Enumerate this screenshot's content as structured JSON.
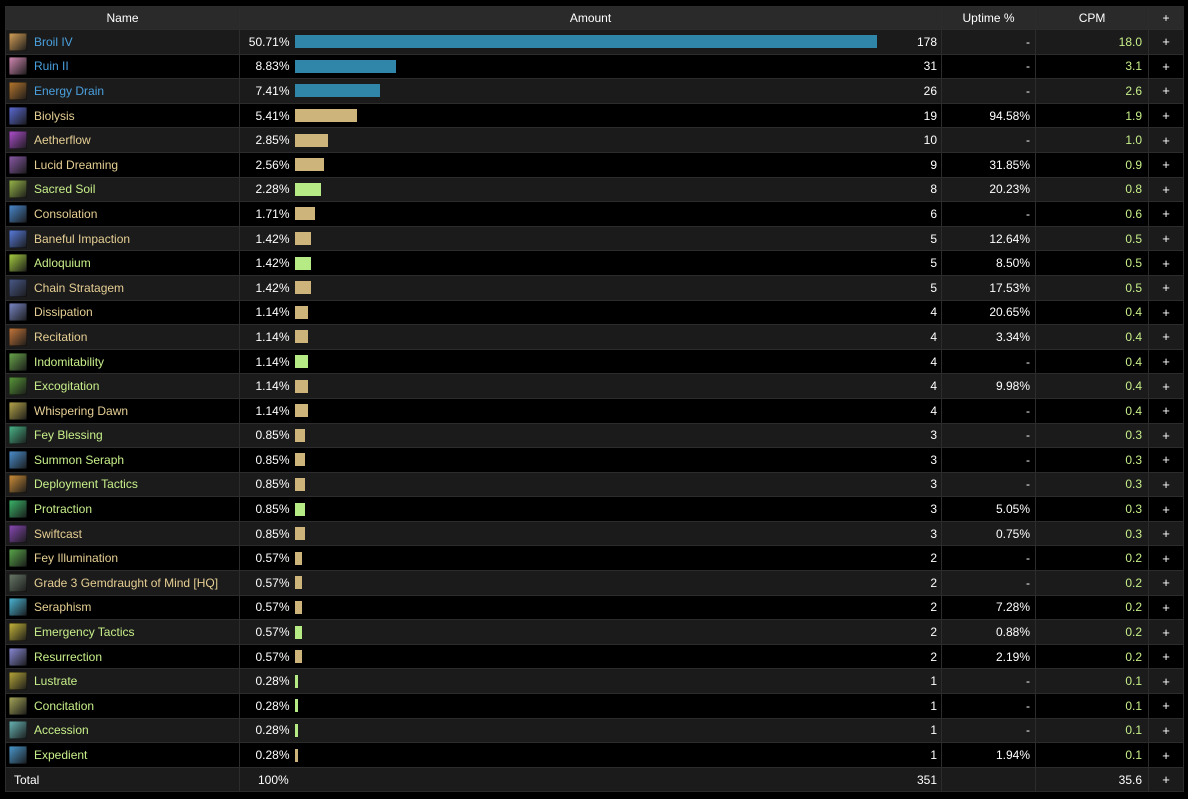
{
  "header": {
    "name": "Name",
    "amount": "Amount",
    "uptime": "Uptime %",
    "cpm": "CPM",
    "plus": "+"
  },
  "colors": {
    "blue": "#2f86a8",
    "tan": "#cdb47a",
    "green": "#b6ea84"
  },
  "rows": [
    {
      "name": "Broil IV",
      "label_color": "blue",
      "bar": "blue",
      "icon": "broil-iv-icon",
      "icon_color": "#d8a25a",
      "pct": "50.71%",
      "frac": 0.5071,
      "count": "178",
      "uptime": "-",
      "cpm": "18.0"
    },
    {
      "name": "Ruin II",
      "label_color": "blue",
      "bar": "blue",
      "icon": "ruin-ii-icon",
      "icon_color": "#d58ab5",
      "pct": "8.83%",
      "frac": 0.0883,
      "count": "31",
      "uptime": "-",
      "cpm": "3.1"
    },
    {
      "name": "Energy Drain",
      "label_color": "blue",
      "bar": "blue",
      "icon": "energy-drain-icon",
      "icon_color": "#b8782e",
      "pct": "7.41%",
      "frac": 0.0741,
      "count": "26",
      "uptime": "-",
      "cpm": "2.6"
    },
    {
      "name": "Biolysis",
      "label_color": "tan",
      "bar": "tan",
      "icon": "biolysis-icon",
      "icon_color": "#5b6bd6",
      "pct": "5.41%",
      "frac": 0.0541,
      "count": "19",
      "uptime": "94.58%",
      "cpm": "1.9"
    },
    {
      "name": "Aetherflow",
      "label_color": "tan",
      "bar": "tan",
      "icon": "aetherflow-icon",
      "icon_color": "#b14fd1",
      "pct": "2.85%",
      "frac": 0.0285,
      "count": "10",
      "uptime": "-",
      "cpm": "1.0"
    },
    {
      "name": "Lucid Dreaming",
      "label_color": "tan",
      "bar": "tan",
      "icon": "lucid-dreaming-icon",
      "icon_color": "#8a5aa8",
      "pct": "2.56%",
      "frac": 0.0256,
      "count": "9",
      "uptime": "31.85%",
      "cpm": "0.9"
    },
    {
      "name": "Sacred Soil",
      "label_color": "green",
      "bar": "green",
      "icon": "sacred-soil-icon",
      "icon_color": "#9ab84a",
      "pct": "2.28%",
      "frac": 0.0228,
      "count": "8",
      "uptime": "20.23%",
      "cpm": "0.8"
    },
    {
      "name": "Consolation",
      "label_color": "tan",
      "bar": "tan",
      "icon": "consolation-icon",
      "icon_color": "#4a8ad0",
      "pct": "1.71%",
      "frac": 0.0171,
      "count": "6",
      "uptime": "-",
      "cpm": "0.6"
    },
    {
      "name": "Baneful Impaction",
      "label_color": "tan",
      "bar": "tan",
      "icon": "baneful-impaction-icon",
      "icon_color": "#5a7ee0",
      "pct": "1.42%",
      "frac": 0.0142,
      "count": "5",
      "uptime": "12.64%",
      "cpm": "0.5"
    },
    {
      "name": "Adloquium",
      "label_color": "green",
      "bar": "green",
      "icon": "adloquium-icon",
      "icon_color": "#a8d040",
      "pct": "1.42%",
      "frac": 0.0142,
      "count": "5",
      "uptime": "8.50%",
      "cpm": "0.5"
    },
    {
      "name": "Chain Stratagem",
      "label_color": "tan",
      "bar": "tan",
      "icon": "chain-stratagem-icon",
      "icon_color": "#4a5a8a",
      "pct": "1.42%",
      "frac": 0.0142,
      "count": "5",
      "uptime": "17.53%",
      "cpm": "0.5"
    },
    {
      "name": "Dissipation",
      "label_color": "tan",
      "bar": "tan",
      "icon": "dissipation-icon",
      "icon_color": "#7a88c8",
      "pct": "1.14%",
      "frac": 0.0114,
      "count": "4",
      "uptime": "20.65%",
      "cpm": "0.4"
    },
    {
      "name": "Recitation",
      "label_color": "tan",
      "bar": "tan",
      "icon": "recitation-icon",
      "icon_color": "#c8783a",
      "pct": "1.14%",
      "frac": 0.0114,
      "count": "4",
      "uptime": "3.34%",
      "cpm": "0.4"
    },
    {
      "name": "Indomitability",
      "label_color": "green",
      "bar": "green",
      "icon": "indomitability-icon",
      "icon_color": "#6aa84a",
      "pct": "1.14%",
      "frac": 0.0114,
      "count": "4",
      "uptime": "-",
      "cpm": "0.4"
    },
    {
      "name": "Excogitation",
      "label_color": "green",
      "bar": "tan",
      "icon": "excogitation-icon",
      "icon_color": "#5a9a3a",
      "pct": "1.14%",
      "frac": 0.0114,
      "count": "4",
      "uptime": "9.98%",
      "cpm": "0.4"
    },
    {
      "name": "Whispering Dawn",
      "label_color": "tan",
      "bar": "tan",
      "icon": "whispering-dawn-icon",
      "icon_color": "#b8a84a",
      "pct": "1.14%",
      "frac": 0.0114,
      "count": "4",
      "uptime": "-",
      "cpm": "0.4"
    },
    {
      "name": "Fey Blessing",
      "label_color": "green",
      "bar": "tan",
      "icon": "fey-blessing-icon",
      "icon_color": "#4ab88a",
      "pct": "0.85%",
      "frac": 0.0085,
      "count": "3",
      "uptime": "-",
      "cpm": "0.3"
    },
    {
      "name": "Summon Seraph",
      "label_color": "green",
      "bar": "tan",
      "icon": "summon-seraph-icon",
      "icon_color": "#4a90d0",
      "pct": "0.85%",
      "frac": 0.0085,
      "count": "3",
      "uptime": "-",
      "cpm": "0.3"
    },
    {
      "name": "Deployment Tactics",
      "label_color": "green",
      "bar": "tan",
      "icon": "deployment-tactics-icon",
      "icon_color": "#d0903a",
      "pct": "0.85%",
      "frac": 0.0085,
      "count": "3",
      "uptime": "-",
      "cpm": "0.3"
    },
    {
      "name": "Protraction",
      "label_color": "green",
      "bar": "green",
      "icon": "protraction-icon",
      "icon_color": "#3ab86a",
      "pct": "0.85%",
      "frac": 0.0085,
      "count": "3",
      "uptime": "5.05%",
      "cpm": "0.3"
    },
    {
      "name": "Swiftcast",
      "label_color": "tan",
      "bar": "tan",
      "icon": "swiftcast-icon",
      "icon_color": "#8a4ab8",
      "pct": "0.85%",
      "frac": 0.0085,
      "count": "3",
      "uptime": "0.75%",
      "cpm": "0.3"
    },
    {
      "name": "Fey Illumination",
      "label_color": "tan",
      "bar": "tan",
      "icon": "fey-illumination-icon",
      "icon_color": "#5aa84a",
      "pct": "0.57%",
      "frac": 0.0057,
      "count": "2",
      "uptime": "-",
      "cpm": "0.2"
    },
    {
      "name": "Grade 3 Gemdraught of Mind [HQ]",
      "label_color": "tan",
      "bar": "tan",
      "icon": "gemdraught-icon",
      "icon_color": "#6a7a6a",
      "pct": "0.57%",
      "frac": 0.0057,
      "count": "2",
      "uptime": "-",
      "cpm": "0.2"
    },
    {
      "name": "Seraphism",
      "label_color": "tan",
      "bar": "tan",
      "icon": "seraphism-icon",
      "icon_color": "#4ab8d8",
      "pct": "0.57%",
      "frac": 0.0057,
      "count": "2",
      "uptime": "7.28%",
      "cpm": "0.2"
    },
    {
      "name": "Emergency Tactics",
      "label_color": "green",
      "bar": "green",
      "icon": "emergency-tactics-icon",
      "icon_color": "#c8b83a",
      "pct": "0.57%",
      "frac": 0.0057,
      "count": "2",
      "uptime": "0.88%",
      "cpm": "0.2"
    },
    {
      "name": "Resurrection",
      "label_color": "green",
      "bar": "tan",
      "icon": "resurrection-icon",
      "icon_color": "#8a8ad8",
      "pct": "0.57%",
      "frac": 0.0057,
      "count": "2",
      "uptime": "2.19%",
      "cpm": "0.2"
    },
    {
      "name": "Lustrate",
      "label_color": "green",
      "bar": "green",
      "icon": "lustrate-icon",
      "icon_color": "#b8a83a",
      "pct": "0.28%",
      "frac": 0.0028,
      "count": "1",
      "uptime": "-",
      "cpm": "0.1"
    },
    {
      "name": "Concitation",
      "label_color": "green",
      "bar": "green",
      "icon": "concitation-icon",
      "icon_color": "#a8a85a",
      "pct": "0.28%",
      "frac": 0.0028,
      "count": "1",
      "uptime": "-",
      "cpm": "0.1"
    },
    {
      "name": "Accession",
      "label_color": "green",
      "bar": "green",
      "icon": "accession-icon",
      "icon_color": "#6ab8b8",
      "pct": "0.28%",
      "frac": 0.0028,
      "count": "1",
      "uptime": "-",
      "cpm": "0.1"
    },
    {
      "name": "Expedient",
      "label_color": "green",
      "bar": "tan",
      "icon": "expedient-icon",
      "icon_color": "#4a9ad0",
      "pct": "0.28%",
      "frac": 0.0028,
      "count": "1",
      "uptime": "1.94%",
      "cpm": "0.1"
    }
  ],
  "total": {
    "label": "Total",
    "pct": "100%",
    "count": "351",
    "uptime": "",
    "cpm": "35.6",
    "plus": "+"
  }
}
